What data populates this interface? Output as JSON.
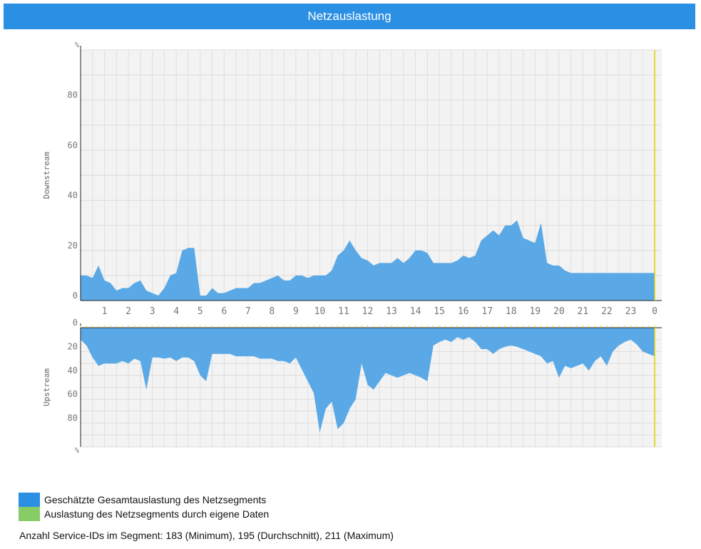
{
  "header": {
    "title": "Netzauslastung"
  },
  "chart_data": {
    "type": "area",
    "x_ticks": [
      "1",
      "2",
      "3",
      "4",
      "5",
      "6",
      "7",
      "8",
      "9",
      "10",
      "11",
      "12",
      "13",
      "14",
      "15",
      "16",
      "17",
      "18",
      "19",
      "20",
      "21",
      "22",
      "23",
      "0"
    ],
    "unit_symbol": "%",
    "downstream": {
      "ylabel": "Downstream",
      "ylim": [
        0,
        100
      ],
      "yticks": [
        "0",
        "20",
        "40",
        "60",
        "80"
      ],
      "x": [
        0,
        0.25,
        0.5,
        0.75,
        1,
        1.25,
        1.5,
        1.75,
        2,
        2.25,
        2.5,
        2.75,
        3,
        3.25,
        3.5,
        3.75,
        4,
        4.25,
        4.5,
        4.75,
        5,
        5.25,
        5.5,
        5.75,
        6,
        6.25,
        6.5,
        6.75,
        7,
        7.25,
        7.5,
        7.75,
        8,
        8.25,
        8.5,
        8.75,
        9,
        9.25,
        9.5,
        9.75,
        10,
        10.25,
        10.5,
        10.75,
        11,
        11.25,
        11.5,
        11.75,
        12,
        12.25,
        12.5,
        12.75,
        13,
        13.25,
        13.5,
        13.75,
        14,
        14.25,
        14.5,
        14.75,
        15,
        15.25,
        15.5,
        15.75,
        16,
        16.25,
        16.5,
        16.75,
        17,
        17.25,
        17.5,
        17.75,
        18,
        18.25,
        18.5,
        18.75,
        19,
        19.25,
        19.5,
        19.75,
        20,
        20.25,
        20.5,
        20.75,
        21,
        21.25,
        21.5,
        21.75,
        22,
        22.25,
        22.5,
        22.75,
        23,
        23.25,
        23.5,
        23.75,
        24
      ],
      "values": [
        10,
        10,
        9,
        14,
        8,
        7,
        4,
        5,
        5,
        7,
        8,
        4,
        3,
        2,
        5,
        10,
        11,
        20,
        21,
        21,
        2,
        2,
        5,
        3,
        3,
        4,
        5,
        5,
        5,
        7,
        7,
        8,
        9,
        10,
        8,
        8,
        10,
        10,
        9,
        10,
        10,
        10,
        12,
        18,
        20,
        24,
        20,
        17,
        16,
        14,
        15,
        15,
        15,
        17,
        15,
        17,
        20,
        20,
        19,
        15,
        15,
        15,
        15,
        16,
        18,
        17,
        18,
        24,
        26,
        28,
        26,
        30,
        30,
        32,
        25,
        24,
        23,
        31,
        15,
        14,
        14,
        12,
        11,
        11,
        11,
        11,
        11,
        11,
        11,
        11,
        11,
        11,
        11,
        11,
        11,
        11,
        11
      ],
      "color": "#5aa9e6"
    },
    "upstream": {
      "ylabel": "Upstream",
      "ylim": [
        0,
        100
      ],
      "yticks": [
        "0",
        "20",
        "40",
        "60",
        "80"
      ],
      "x": [
        0,
        0.25,
        0.5,
        0.75,
        1,
        1.25,
        1.5,
        1.75,
        2,
        2.25,
        2.5,
        2.75,
        3,
        3.25,
        3.5,
        3.75,
        4,
        4.25,
        4.5,
        4.75,
        5,
        5.25,
        5.5,
        5.75,
        6,
        6.25,
        6.5,
        6.75,
        7,
        7.25,
        7.5,
        7.75,
        8,
        8.25,
        8.5,
        8.75,
        9,
        9.25,
        9.5,
        9.75,
        10,
        10.25,
        10.5,
        10.75,
        11,
        11.25,
        11.5,
        11.75,
        12,
        12.25,
        12.5,
        12.75,
        13,
        13.25,
        13.5,
        13.75,
        14,
        14.25,
        14.5,
        14.75,
        15,
        15.25,
        15.5,
        15.75,
        16,
        16.25,
        16.5,
        16.75,
        17,
        17.25,
        17.5,
        17.75,
        18,
        18.25,
        18.5,
        18.75,
        19,
        19.25,
        19.5,
        19.75,
        20,
        20.25,
        20.5,
        20.75,
        21,
        21.25,
        21.5,
        21.75,
        22,
        22.25,
        22.5,
        22.75,
        23,
        23.25,
        23.5,
        23.75,
        24
      ],
      "values": [
        10,
        15,
        25,
        32,
        30,
        30,
        30,
        28,
        30,
        26,
        28,
        52,
        25,
        25,
        26,
        25,
        28,
        25,
        25,
        28,
        40,
        45,
        22,
        22,
        22,
        22,
        24,
        24,
        24,
        24,
        26,
        26,
        26,
        28,
        28,
        30,
        25,
        35,
        45,
        55,
        88,
        68,
        62,
        85,
        80,
        68,
        60,
        30,
        48,
        52,
        45,
        38,
        40,
        42,
        40,
        38,
        40,
        42,
        45,
        15,
        12,
        10,
        12,
        8,
        10,
        8,
        12,
        18,
        18,
        22,
        18,
        16,
        15,
        16,
        18,
        20,
        22,
        24,
        30,
        28,
        42,
        32,
        34,
        32,
        30,
        36,
        28,
        24,
        32,
        20,
        15,
        12,
        10,
        14,
        20,
        22,
        24
      ],
      "color": "#5aa9e6"
    },
    "legend": [
      {
        "label": "Geschätzte Gesamtauslastung des Netzsegments",
        "color": "#2b8fe3"
      },
      {
        "label": "Auslastung des Netzsegments durch eigene Daten",
        "color": "#88cc66"
      }
    ]
  },
  "footer": {
    "service_ids": "Anzahl Service-IDs im Segment: 183 (Minimum), 195 (Durchschnitt), 211 (Maximum)"
  }
}
